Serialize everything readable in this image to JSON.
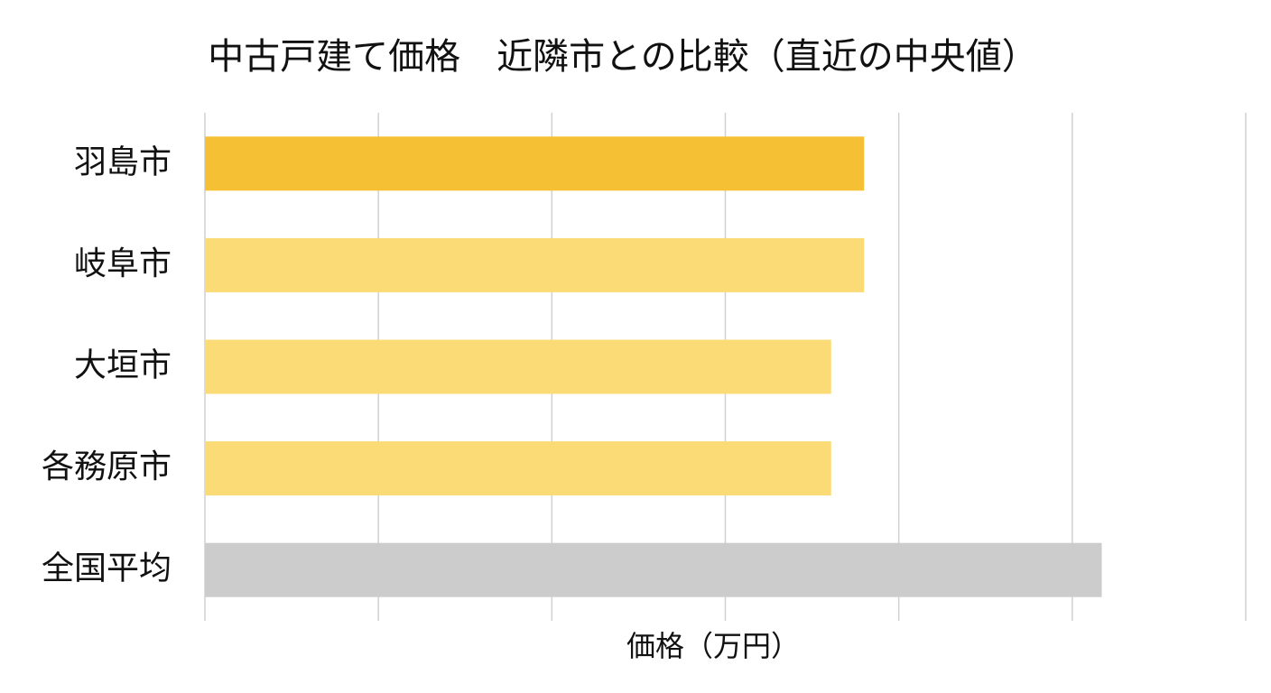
{
  "chart_data": {
    "type": "hbar",
    "title": "中古戸建て価格　近隣市との比較（直近の中央値）",
    "x_label": "価格（万円）",
    "categories": [
      "羽島市",
      "岐阜市",
      "大垣市",
      "各務原市",
      "全国平均"
    ],
    "values": [
      3.8,
      3.8,
      3.61,
      3.61,
      5.17
    ],
    "colors": [
      "#f5c033",
      "#fadb75",
      "#fadb75",
      "#fadb75",
      "#cccccc"
    ],
    "xlim": [
      0,
      6
    ],
    "xgrid": [
      0,
      1,
      2,
      3,
      4,
      5,
      6
    ],
    "grid": true
  }
}
